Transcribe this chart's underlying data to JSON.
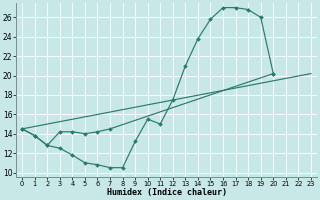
{
  "xlabel": "Humidex (Indice chaleur)",
  "background_color": "#c8e8e8",
  "grid_color": "#b0d8d8",
  "line_color": "#2a7a6a",
  "xlim": [
    -0.5,
    23.5
  ],
  "ylim": [
    9.5,
    27.5
  ],
  "xticks": [
    0,
    1,
    2,
    3,
    4,
    5,
    6,
    7,
    8,
    9,
    10,
    11,
    12,
    13,
    14,
    15,
    16,
    17,
    18,
    19,
    20,
    21,
    22,
    23
  ],
  "yticks": [
    10,
    12,
    14,
    16,
    18,
    20,
    22,
    24,
    26
  ],
  "line1_x": [
    0,
    1,
    2,
    3,
    4,
    5,
    6,
    7,
    8,
    9,
    10,
    11,
    12,
    13,
    14,
    15,
    16,
    17,
    18,
    19,
    20
  ],
  "line1_y": [
    14.5,
    13.8,
    12.8,
    12.5,
    11.8,
    11.0,
    10.8,
    10.5,
    10.5,
    13.2,
    15.5,
    15.0,
    17.5,
    21.0,
    23.8,
    25.8,
    27.0,
    27.0,
    26.8,
    26.0,
    20.2
  ],
  "line2_x": [
    0,
    1,
    2,
    3,
    4,
    5,
    6,
    7,
    20
  ],
  "line2_y": [
    14.5,
    13.8,
    12.8,
    14.2,
    14.2,
    14.0,
    14.2,
    14.5,
    20.2
  ],
  "line3_x": [
    0,
    23
  ],
  "line3_y": [
    14.5,
    20.2
  ]
}
